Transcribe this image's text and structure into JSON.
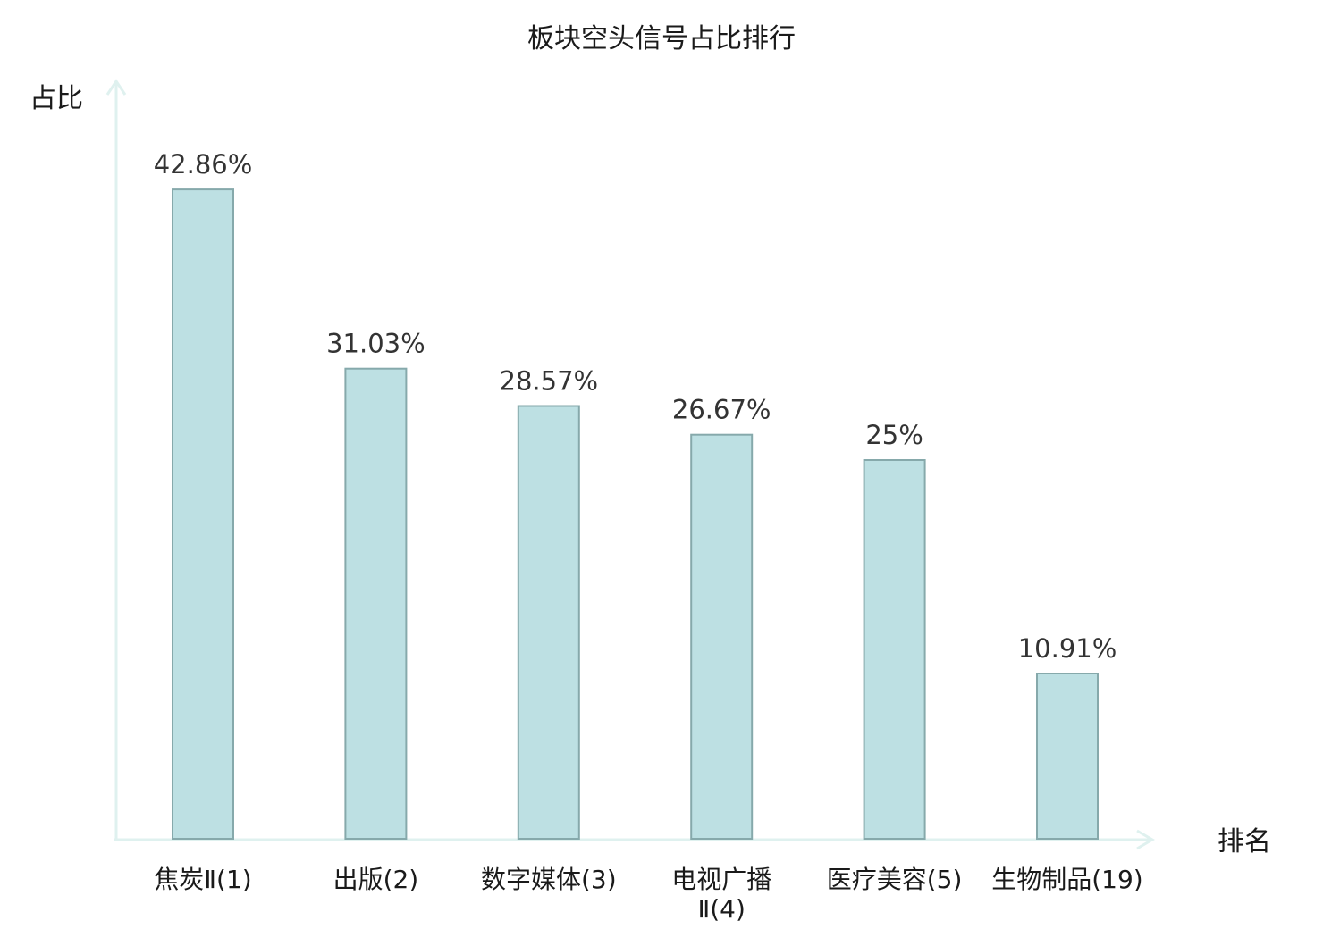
{
  "chart_data": {
    "type": "bar",
    "title": "板块空头信号占比排行",
    "xlabel": "排名",
    "ylabel": "占比",
    "categories": [
      [
        "焦炭Ⅱ(1)"
      ],
      [
        "出版(2)"
      ],
      [
        "数字媒体(3)"
      ],
      [
        "电视广播",
        "Ⅱ(4)"
      ],
      [
        "医疗美容(5)"
      ],
      [
        "生物制品(19)"
      ]
    ],
    "values": [
      42.86,
      31.03,
      28.57,
      26.67,
      25,
      10.91
    ],
    "value_labels": [
      "42.86%",
      "31.03%",
      "28.57%",
      "26.67%",
      "25%",
      "10.91%"
    ],
    "highlight_index": 5,
    "ylim": [
      0,
      50
    ],
    "grid": false,
    "colors": {
      "bar_fill": "#bde0e3",
      "bar_stroke": "#86a9ab",
      "axis": "#dff1ef",
      "highlight_text": "#e00000",
      "text": "#1a1a1a",
      "value_text": "#333333"
    }
  }
}
